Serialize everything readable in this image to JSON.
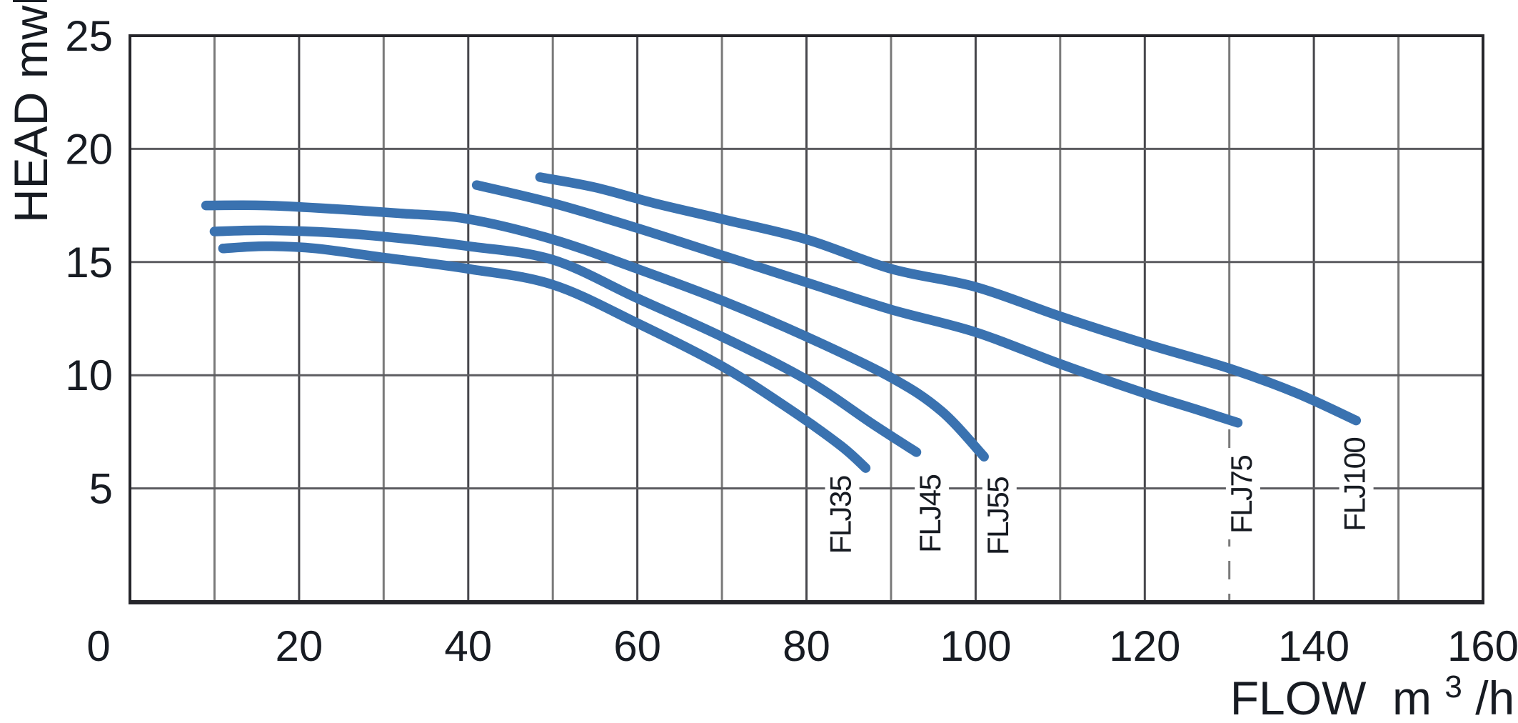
{
  "chart_data": {
    "type": "line",
    "title": "",
    "ylabel": "HEAD mwh",
    "xlabel_pre": "FLOW  m",
    "xlabel_sup": "3",
    "xlabel_post": "/h",
    "x_axis": {
      "min": 0,
      "max": 160,
      "grid_step": 10,
      "tick_labels": [
        0,
        20,
        40,
        60,
        80,
        100,
        120,
        140,
        160
      ],
      "dashed_gridline_at": 130
    },
    "y_axis": {
      "min": 0,
      "max": 25,
      "grid_step": 5,
      "tick_labels": [
        5,
        10,
        15,
        20,
        25
      ]
    },
    "grid": true,
    "legend_position": "none",
    "series": [
      {
        "name": "FLJ35",
        "points": [
          [
            11,
            15.6
          ],
          [
            16,
            15.7
          ],
          [
            22,
            15.6
          ],
          [
            30,
            15.2
          ],
          [
            40,
            14.7
          ],
          [
            50,
            14.0
          ],
          [
            60,
            12.3
          ],
          [
            70,
            10.4
          ],
          [
            78,
            8.5
          ],
          [
            84,
            6.9
          ],
          [
            87,
            5.9
          ]
        ],
        "label_pos": [
          83.8,
          2.1
        ]
      },
      {
        "name": "FLJ45",
        "points": [
          [
            10,
            16.35
          ],
          [
            16,
            16.4
          ],
          [
            24,
            16.3
          ],
          [
            32,
            16.05
          ],
          [
            40,
            15.7
          ],
          [
            50,
            15.1
          ],
          [
            60,
            13.4
          ],
          [
            70,
            11.7
          ],
          [
            80,
            9.8
          ],
          [
            88,
            7.8
          ],
          [
            93,
            6.6
          ]
        ],
        "label_pos": [
          94.4,
          2.15
        ]
      },
      {
        "name": "FLJ55",
        "points": [
          [
            9,
            17.5
          ],
          [
            16,
            17.5
          ],
          [
            24,
            17.35
          ],
          [
            32,
            17.15
          ],
          [
            40,
            16.9
          ],
          [
            50,
            16.0
          ],
          [
            60,
            14.7
          ],
          [
            70,
            13.3
          ],
          [
            80,
            11.7
          ],
          [
            90,
            9.9
          ],
          [
            96,
            8.4
          ],
          [
            101,
            6.4
          ]
        ],
        "label_pos": [
          102.4,
          2.05
        ]
      },
      {
        "name": "FLJ75",
        "points": [
          [
            41,
            18.4
          ],
          [
            50,
            17.6
          ],
          [
            60,
            16.5
          ],
          [
            70,
            15.3
          ],
          [
            80,
            14.1
          ],
          [
            90,
            12.9
          ],
          [
            100,
            11.9
          ],
          [
            110,
            10.5
          ],
          [
            120,
            9.2
          ],
          [
            126,
            8.5
          ],
          [
            131,
            7.9
          ]
        ],
        "label_pos": [
          131.2,
          3.0
        ]
      },
      {
        "name": "FLJ100",
        "points": [
          [
            48.5,
            18.75
          ],
          [
            55,
            18.3
          ],
          [
            62,
            17.6
          ],
          [
            70,
            16.9
          ],
          [
            80,
            16.0
          ],
          [
            90,
            14.7
          ],
          [
            100,
            13.9
          ],
          [
            110,
            12.6
          ],
          [
            120,
            11.4
          ],
          [
            130,
            10.3
          ],
          [
            138,
            9.2
          ],
          [
            145,
            8.0
          ]
        ],
        "label_pos": [
          144.6,
          3.1
        ]
      }
    ],
    "colors": {
      "curve": "#3a72b0",
      "grid": "#7a7a7a",
      "grid_dark": "#47474c",
      "border": "#26262b",
      "text": "#171b22",
      "background": "#ffffff"
    }
  }
}
